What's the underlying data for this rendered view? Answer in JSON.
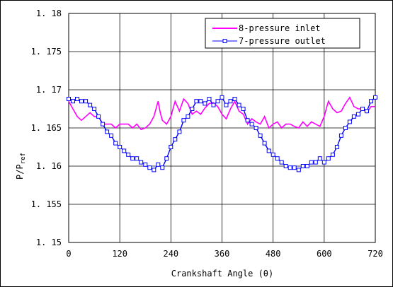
{
  "chart_data": {
    "type": "line",
    "xlabel": "Crankshaft Angle (θ)",
    "ylabel": "P/P",
    "ylabel_sub": "ref",
    "xlim": [
      0,
      720
    ],
    "ylim": [
      1.15,
      1.18
    ],
    "xticks": [
      0,
      120,
      240,
      360,
      480,
      600,
      720
    ],
    "xtick_labels": [
      "0",
      "120",
      "240",
      "360",
      "480",
      "600",
      "720"
    ],
    "yticks": [
      1.15,
      1.155,
      1.16,
      1.165,
      1.17,
      1.175,
      1.18
    ],
    "ytick_labels": [
      "1. 15",
      "1. 155",
      "1. 16",
      "1. 165",
      "1. 17",
      "1. 175",
      "1. 18"
    ],
    "grid": true,
    "legend_position": "top-right",
    "series": [
      {
        "name": "8-pressure inlet",
        "color": "#ff00ff",
        "marker": "none",
        "x": [
          0,
          10,
          20,
          30,
          40,
          50,
          60,
          70,
          80,
          90,
          100,
          110,
          120,
          130,
          140,
          150,
          160,
          170,
          180,
          190,
          200,
          210,
          215,
          220,
          230,
          240,
          250,
          260,
          270,
          280,
          290,
          300,
          310,
          320,
          330,
          340,
          350,
          360,
          370,
          380,
          390,
          400,
          410,
          420,
          430,
          440,
          450,
          460,
          470,
          480,
          490,
          500,
          510,
          520,
          530,
          540,
          550,
          560,
          570,
          580,
          590,
          600,
          610,
          620,
          630,
          640,
          650,
          660,
          670,
          680,
          690,
          700,
          710,
          720
        ],
        "y": [
          1.1685,
          1.1675,
          1.1665,
          1.166,
          1.1665,
          1.167,
          1.1665,
          1.1665,
          1.1655,
          1.1655,
          1.1655,
          1.165,
          1.1655,
          1.1655,
          1.1655,
          1.165,
          1.1655,
          1.1648,
          1.165,
          1.1655,
          1.1665,
          1.1685,
          1.167,
          1.166,
          1.1655,
          1.1665,
          1.1685,
          1.1672,
          1.1688,
          1.1682,
          1.1668,
          1.1672,
          1.1668,
          1.1676,
          1.1682,
          1.1683,
          1.1678,
          1.1668,
          1.1662,
          1.1675,
          1.1685,
          1.1672,
          1.1668,
          1.1655,
          1.1662,
          1.1658,
          1.1655,
          1.1665,
          1.165,
          1.1655,
          1.1658,
          1.165,
          1.1655,
          1.1655,
          1.1652,
          1.165,
          1.1658,
          1.1652,
          1.1658,
          1.1655,
          1.1652,
          1.1665,
          1.1685,
          1.1675,
          1.167,
          1.1672,
          1.1682,
          1.169,
          1.1678,
          1.1675,
          1.1675,
          1.167,
          1.1678,
          1.1678
        ]
      },
      {
        "name": "7-pressure outlet",
        "color": "#0000ff",
        "marker": "square",
        "x": [
          0,
          10,
          20,
          30,
          40,
          50,
          60,
          70,
          80,
          90,
          100,
          110,
          120,
          130,
          140,
          150,
          160,
          170,
          180,
          190,
          200,
          210,
          220,
          230,
          240,
          250,
          260,
          270,
          280,
          290,
          300,
          310,
          320,
          330,
          340,
          350,
          360,
          370,
          380,
          390,
          400,
          410,
          420,
          430,
          440,
          450,
          460,
          470,
          480,
          490,
          500,
          510,
          520,
          530,
          540,
          550,
          560,
          570,
          580,
          590,
          600,
          610,
          620,
          630,
          640,
          650,
          660,
          670,
          680,
          690,
          700,
          710,
          720
        ],
        "y": [
          1.1688,
          1.1685,
          1.1688,
          1.1685,
          1.1685,
          1.168,
          1.1675,
          1.1665,
          1.1655,
          1.1645,
          1.164,
          1.163,
          1.1625,
          1.162,
          1.1615,
          1.161,
          1.161,
          1.1605,
          1.1602,
          1.1598,
          1.1595,
          1.1602,
          1.1598,
          1.161,
          1.1625,
          1.1635,
          1.1645,
          1.166,
          1.1665,
          1.1675,
          1.1685,
          1.1685,
          1.1682,
          1.1688,
          1.168,
          1.1685,
          1.169,
          1.168,
          1.1685,
          1.1688,
          1.168,
          1.1675,
          1.166,
          1.1655,
          1.165,
          1.164,
          1.163,
          1.162,
          1.1615,
          1.161,
          1.1605,
          1.16,
          1.1598,
          1.1598,
          1.1595,
          1.16,
          1.16,
          1.1605,
          1.1605,
          1.161,
          1.1605,
          1.161,
          1.1615,
          1.1625,
          1.164,
          1.165,
          1.1658,
          1.1665,
          1.1668,
          1.1675,
          1.1672,
          1.1685,
          1.169
        ]
      }
    ]
  }
}
